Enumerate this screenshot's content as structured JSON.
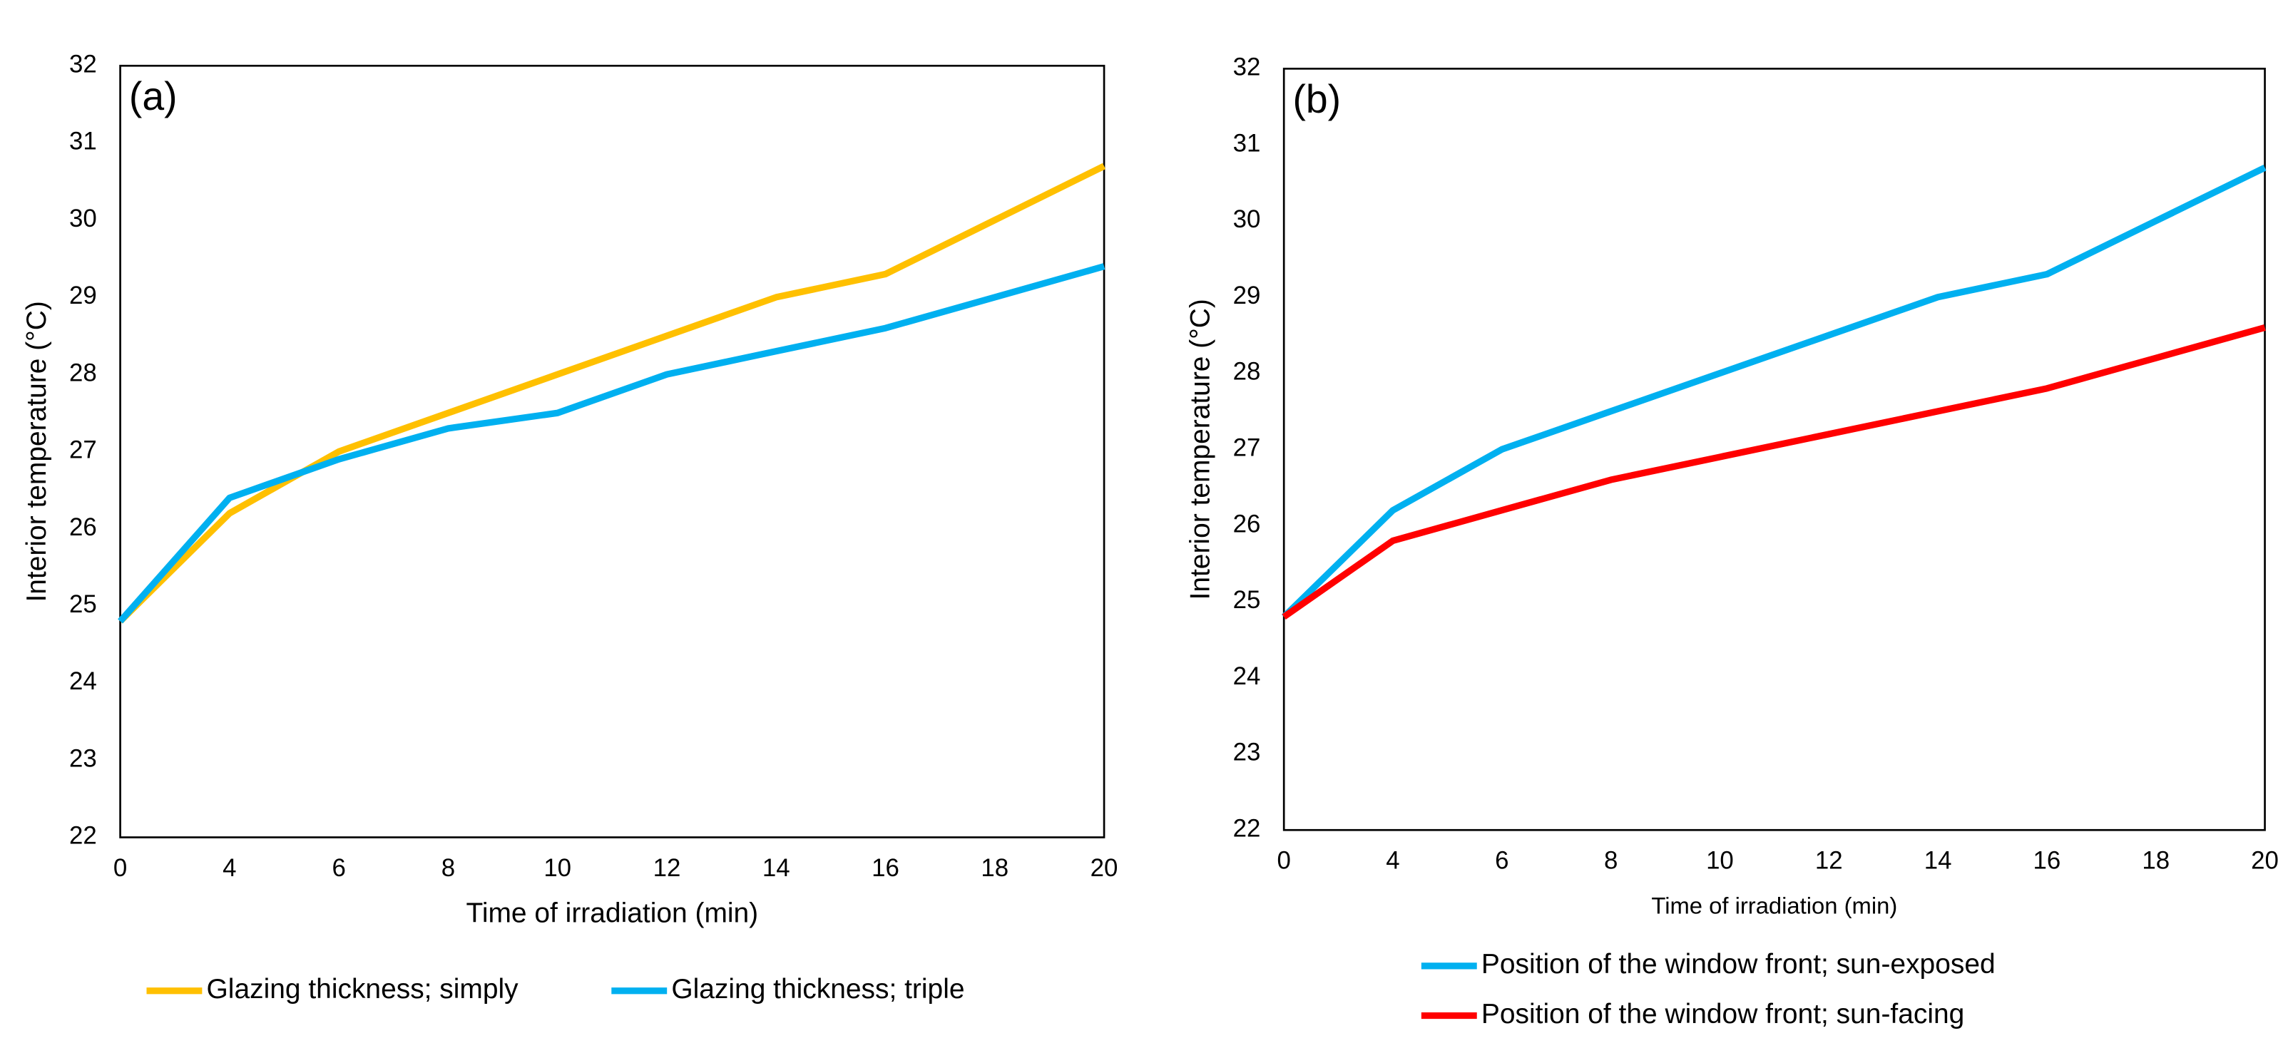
{
  "chart_data": [
    {
      "type": "line",
      "annotation": "(a)",
      "x_label": "Time of irradiation (min)",
      "y_label": "Interior temperature (°C)",
      "categories": [
        "0",
        "4",
        "6",
        "8",
        "10",
        "12",
        "14",
        "16",
        "18",
        "20"
      ],
      "series": [
        {
          "name": "Glazing thickness; simply",
          "color": "#ffc000",
          "values": [
            24.8,
            26.2,
            27.0,
            27.5,
            28.0,
            28.5,
            29.0,
            29.3,
            30.0,
            30.7
          ]
        },
        {
          "name": "Glazing thickness; triple",
          "color": "#00b0f0",
          "values": [
            24.8,
            26.4,
            26.9,
            27.3,
            27.5,
            28.0,
            28.3,
            28.6,
            29.0,
            29.4
          ]
        }
      ],
      "ylim": [
        22,
        32
      ],
      "yticks": [
        22,
        23,
        24,
        25,
        26,
        27,
        28,
        29,
        30,
        31,
        32
      ],
      "grid": false,
      "legend": "bottom"
    },
    {
      "type": "line",
      "annotation": "(b)",
      "x_label": "Time of irradiation (min)",
      "y_label": "Interior temperature (°C)",
      "categories": [
        "0",
        "4",
        "6",
        "8",
        "10",
        "12",
        "14",
        "16",
        "18",
        "20"
      ],
      "series": [
        {
          "name": "Position of the window front; sun-exposed",
          "color": "#00b0f0",
          "values": [
            24.8,
            26.2,
            27.0,
            27.5,
            28.0,
            28.5,
            29.0,
            29.3,
            30.0,
            30.7
          ]
        },
        {
          "name": "Position of the window front; sun-facing",
          "color": "#ff0000",
          "values": [
            24.8,
            25.8,
            26.2,
            26.6,
            26.9,
            27.2,
            27.5,
            27.8,
            28.2,
            28.6
          ]
        }
      ],
      "ylim": [
        22,
        32
      ],
      "yticks": [
        22,
        23,
        24,
        25,
        26,
        27,
        28,
        29,
        30,
        31,
        32
      ],
      "grid": false,
      "legend": "bottom"
    }
  ]
}
